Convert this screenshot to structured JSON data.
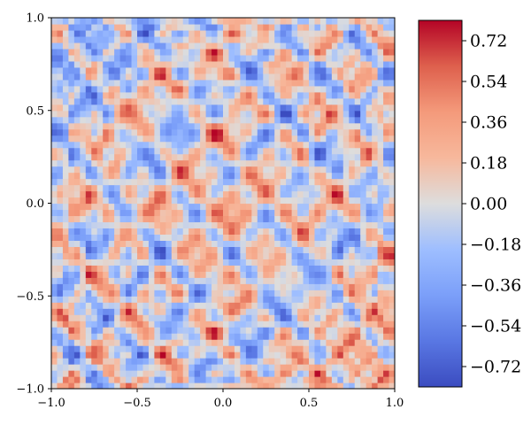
{
  "chart_data": {
    "type": "heatmap",
    "title": "",
    "xlabel": "",
    "ylabel": "",
    "xlim": [
      -1.0,
      1.0
    ],
    "ylim": [
      -1.0,
      1.0
    ],
    "x_ticks": [
      -1.0,
      -0.5,
      0.0,
      0.5,
      1.0
    ],
    "x_tick_labels": [
      "−1.0",
      "−0.5",
      "0.0",
      "0.5",
      "1.0"
    ],
    "y_ticks": [
      -1.0,
      -0.5,
      0.0,
      0.5,
      1.0
    ],
    "y_tick_labels": [
      "−1.0",
      "−0.5",
      "0.0",
      "0.5",
      "1.0"
    ],
    "colormap": "coolwarm",
    "value_range": [
      -0.81,
      0.81
    ],
    "colorbar": {
      "ticks": [
        0.72,
        0.54,
        0.36,
        0.18,
        0.0,
        -0.18,
        -0.36,
        -0.54,
        -0.72
      ],
      "tick_labels": [
        "0.72",
        "0.54",
        "0.36",
        "0.18",
        "0.00",
        "−0.18",
        "−0.36",
        "−0.54",
        "−0.72"
      ]
    },
    "grid": false,
    "legend": "none"
  },
  "colors": {
    "cold": "#3b4cc0",
    "neutral": "#dddddd",
    "warm": "#b40426"
  }
}
